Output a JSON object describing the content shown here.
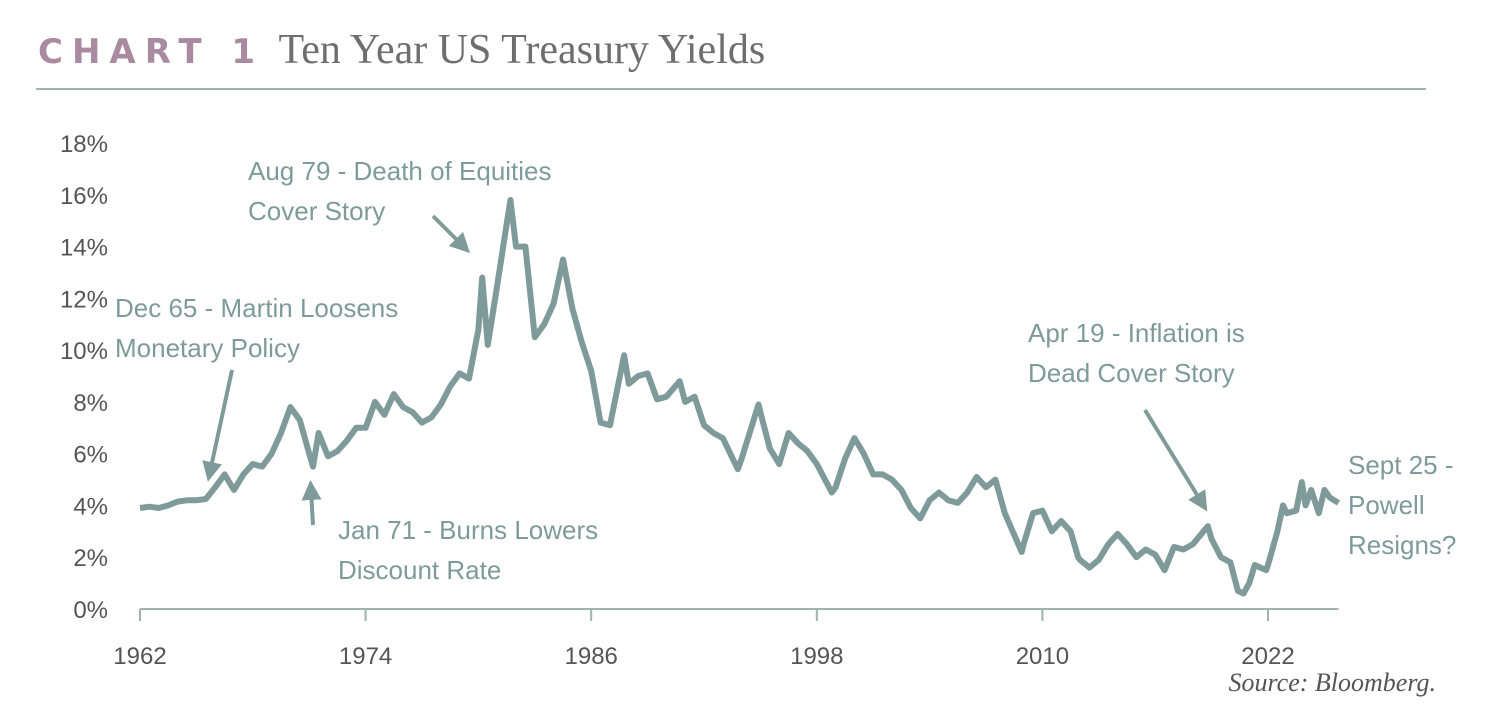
{
  "header": {
    "tag": "CHART 1",
    "title": "Ten Year US Treasury Yields"
  },
  "source": "Source: Bloomberg.",
  "colors": {
    "line": "#7f9a9a",
    "accent": "#a98aa0",
    "annotation": "#7f9a9a"
  },
  "annotations": [
    {
      "lines": [
        "Dec 65 - Martin Loosens",
        "Monetary Policy"
      ]
    },
    {
      "lines": [
        "Jan 71 - Burns Lowers",
        "Discount Rate"
      ]
    },
    {
      "lines": [
        "Aug 79 - Death of Equities",
        "Cover Story"
      ]
    },
    {
      "lines": [
        "Apr 19 - Inflation is",
        "Dead Cover Story"
      ]
    },
    {
      "lines": [
        "Sept 25 -",
        "Powell",
        "Resigns?"
      ]
    }
  ],
  "chart_data": {
    "type": "line",
    "title": "Ten Year US Treasury Yields",
    "xlabel": "",
    "ylabel": "",
    "xlim": [
      1962,
      2025.75
    ],
    "ylim": [
      0,
      18
    ],
    "x_ticks": [
      "1962",
      "1974",
      "1986",
      "1998",
      "2010",
      "2022"
    ],
    "y_ticks": [
      "0%",
      "2%",
      "4%",
      "6%",
      "8%",
      "10%",
      "12%",
      "14%",
      "16%",
      "18%"
    ],
    "grid": false,
    "series": [
      {
        "points": [
          [
            1962,
            3.9
          ],
          [
            1962.5,
            3.95
          ],
          [
            1963,
            3.9
          ],
          [
            1963.5,
            4.0
          ],
          [
            1964,
            4.15
          ],
          [
            1964.5,
            4.2
          ],
          [
            1965,
            4.2
          ],
          [
            1965.5,
            4.25
          ],
          [
            1966,
            4.7
          ],
          [
            1966.5,
            5.2
          ],
          [
            1967,
            4.6
          ],
          [
            1967.5,
            5.2
          ],
          [
            1968,
            5.6
          ],
          [
            1968.5,
            5.5
          ],
          [
            1969,
            6.0
          ],
          [
            1969.5,
            6.8
          ],
          [
            1970,
            7.8
          ],
          [
            1970.5,
            7.3
          ],
          [
            1971,
            6.0
          ],
          [
            1971.2,
            5.5
          ],
          [
            1971.5,
            6.8
          ],
          [
            1972,
            5.9
          ],
          [
            1972.5,
            6.1
          ],
          [
            1973,
            6.5
          ],
          [
            1973.5,
            7.0
          ],
          [
            1974,
            7.0
          ],
          [
            1974.5,
            8.0
          ],
          [
            1975,
            7.5
          ],
          [
            1975.5,
            8.3
          ],
          [
            1976,
            7.8
          ],
          [
            1976.5,
            7.6
          ],
          [
            1977,
            7.2
          ],
          [
            1977.5,
            7.4
          ],
          [
            1978,
            7.9
          ],
          [
            1978.5,
            8.6
          ],
          [
            1979,
            9.1
          ],
          [
            1979.5,
            8.9
          ],
          [
            1980,
            10.8
          ],
          [
            1980.2,
            12.8
          ],
          [
            1980.5,
            10.2
          ],
          [
            1981,
            12.5
          ],
          [
            1981.7,
            15.8
          ],
          [
            1982,
            14.0
          ],
          [
            1982.5,
            14.0
          ],
          [
            1983,
            10.5
          ],
          [
            1983.5,
            11.0
          ],
          [
            1984,
            11.8
          ],
          [
            1984.5,
            13.5
          ],
          [
            1985,
            11.6
          ],
          [
            1985.5,
            10.3
          ],
          [
            1986,
            9.2
          ],
          [
            1986.5,
            7.2
          ],
          [
            1987,
            7.1
          ],
          [
            1987.75,
            9.8
          ],
          [
            1988,
            8.7
          ],
          [
            1988.5,
            9.0
          ],
          [
            1989,
            9.1
          ],
          [
            1989.5,
            8.1
          ],
          [
            1990,
            8.2
          ],
          [
            1990.7,
            8.8
          ],
          [
            1991,
            8.0
          ],
          [
            1991.5,
            8.2
          ],
          [
            1992,
            7.1
          ],
          [
            1992.5,
            6.8
          ],
          [
            1993,
            6.6
          ],
          [
            1993.8,
            5.4
          ],
          [
            1994,
            5.8
          ],
          [
            1994.9,
            7.9
          ],
          [
            1995,
            7.6
          ],
          [
            1995.5,
            6.2
          ],
          [
            1996,
            5.6
          ],
          [
            1996.5,
            6.8
          ],
          [
            1997,
            6.4
          ],
          [
            1997.5,
            6.1
          ],
          [
            1998,
            5.6
          ],
          [
            1998.8,
            4.5
          ],
          [
            1999,
            4.7
          ],
          [
            1999.5,
            5.8
          ],
          [
            2000,
            6.6
          ],
          [
            2000.5,
            6.0
          ],
          [
            2001,
            5.2
          ],
          [
            2001.5,
            5.2
          ],
          [
            2002,
            5.0
          ],
          [
            2002.5,
            4.6
          ],
          [
            2003,
            3.9
          ],
          [
            2003.5,
            3.5
          ],
          [
            2004,
            4.2
          ],
          [
            2004.5,
            4.5
          ],
          [
            2005,
            4.2
          ],
          [
            2005.5,
            4.1
          ],
          [
            2006,
            4.5
          ],
          [
            2006.5,
            5.1
          ],
          [
            2007,
            4.7
          ],
          [
            2007.5,
            5.0
          ],
          [
            2008,
            3.7
          ],
          [
            2008.9,
            2.2
          ],
          [
            2009,
            2.5
          ],
          [
            2009.5,
            3.7
          ],
          [
            2010,
            3.8
          ],
          [
            2010.5,
            3.0
          ],
          [
            2011,
            3.4
          ],
          [
            2011.5,
            3.0
          ],
          [
            2011.9,
            2.0
          ],
          [
            2012,
            1.9
          ],
          [
            2012.5,
            1.6
          ],
          [
            2013,
            1.9
          ],
          [
            2013.5,
            2.5
          ],
          [
            2014,
            2.9
          ],
          [
            2014.5,
            2.5
          ],
          [
            2015,
            2.0
          ],
          [
            2015.5,
            2.3
          ],
          [
            2016,
            2.1
          ],
          [
            2016.5,
            1.5
          ],
          [
            2017,
            2.4
          ],
          [
            2017.5,
            2.3
          ],
          [
            2018,
            2.5
          ],
          [
            2018.8,
            3.2
          ],
          [
            2019,
            2.7
          ],
          [
            2019.5,
            2.0
          ],
          [
            2020,
            1.8
          ],
          [
            2020.4,
            0.7
          ],
          [
            2020.7,
            0.6
          ],
          [
            2021,
            1.0
          ],
          [
            2021.3,
            1.7
          ],
          [
            2021.9,
            1.5
          ],
          [
            2022,
            1.7
          ],
          [
            2022.5,
            3.0
          ],
          [
            2022.8,
            4.0
          ],
          [
            2023,
            3.7
          ],
          [
            2023.5,
            3.8
          ],
          [
            2023.8,
            4.9
          ],
          [
            2024,
            4.0
          ],
          [
            2024.3,
            4.6
          ],
          [
            2024.7,
            3.7
          ],
          [
            2025,
            4.6
          ],
          [
            2025.3,
            4.3
          ],
          [
            2025.75,
            4.1
          ]
        ]
      }
    ]
  }
}
